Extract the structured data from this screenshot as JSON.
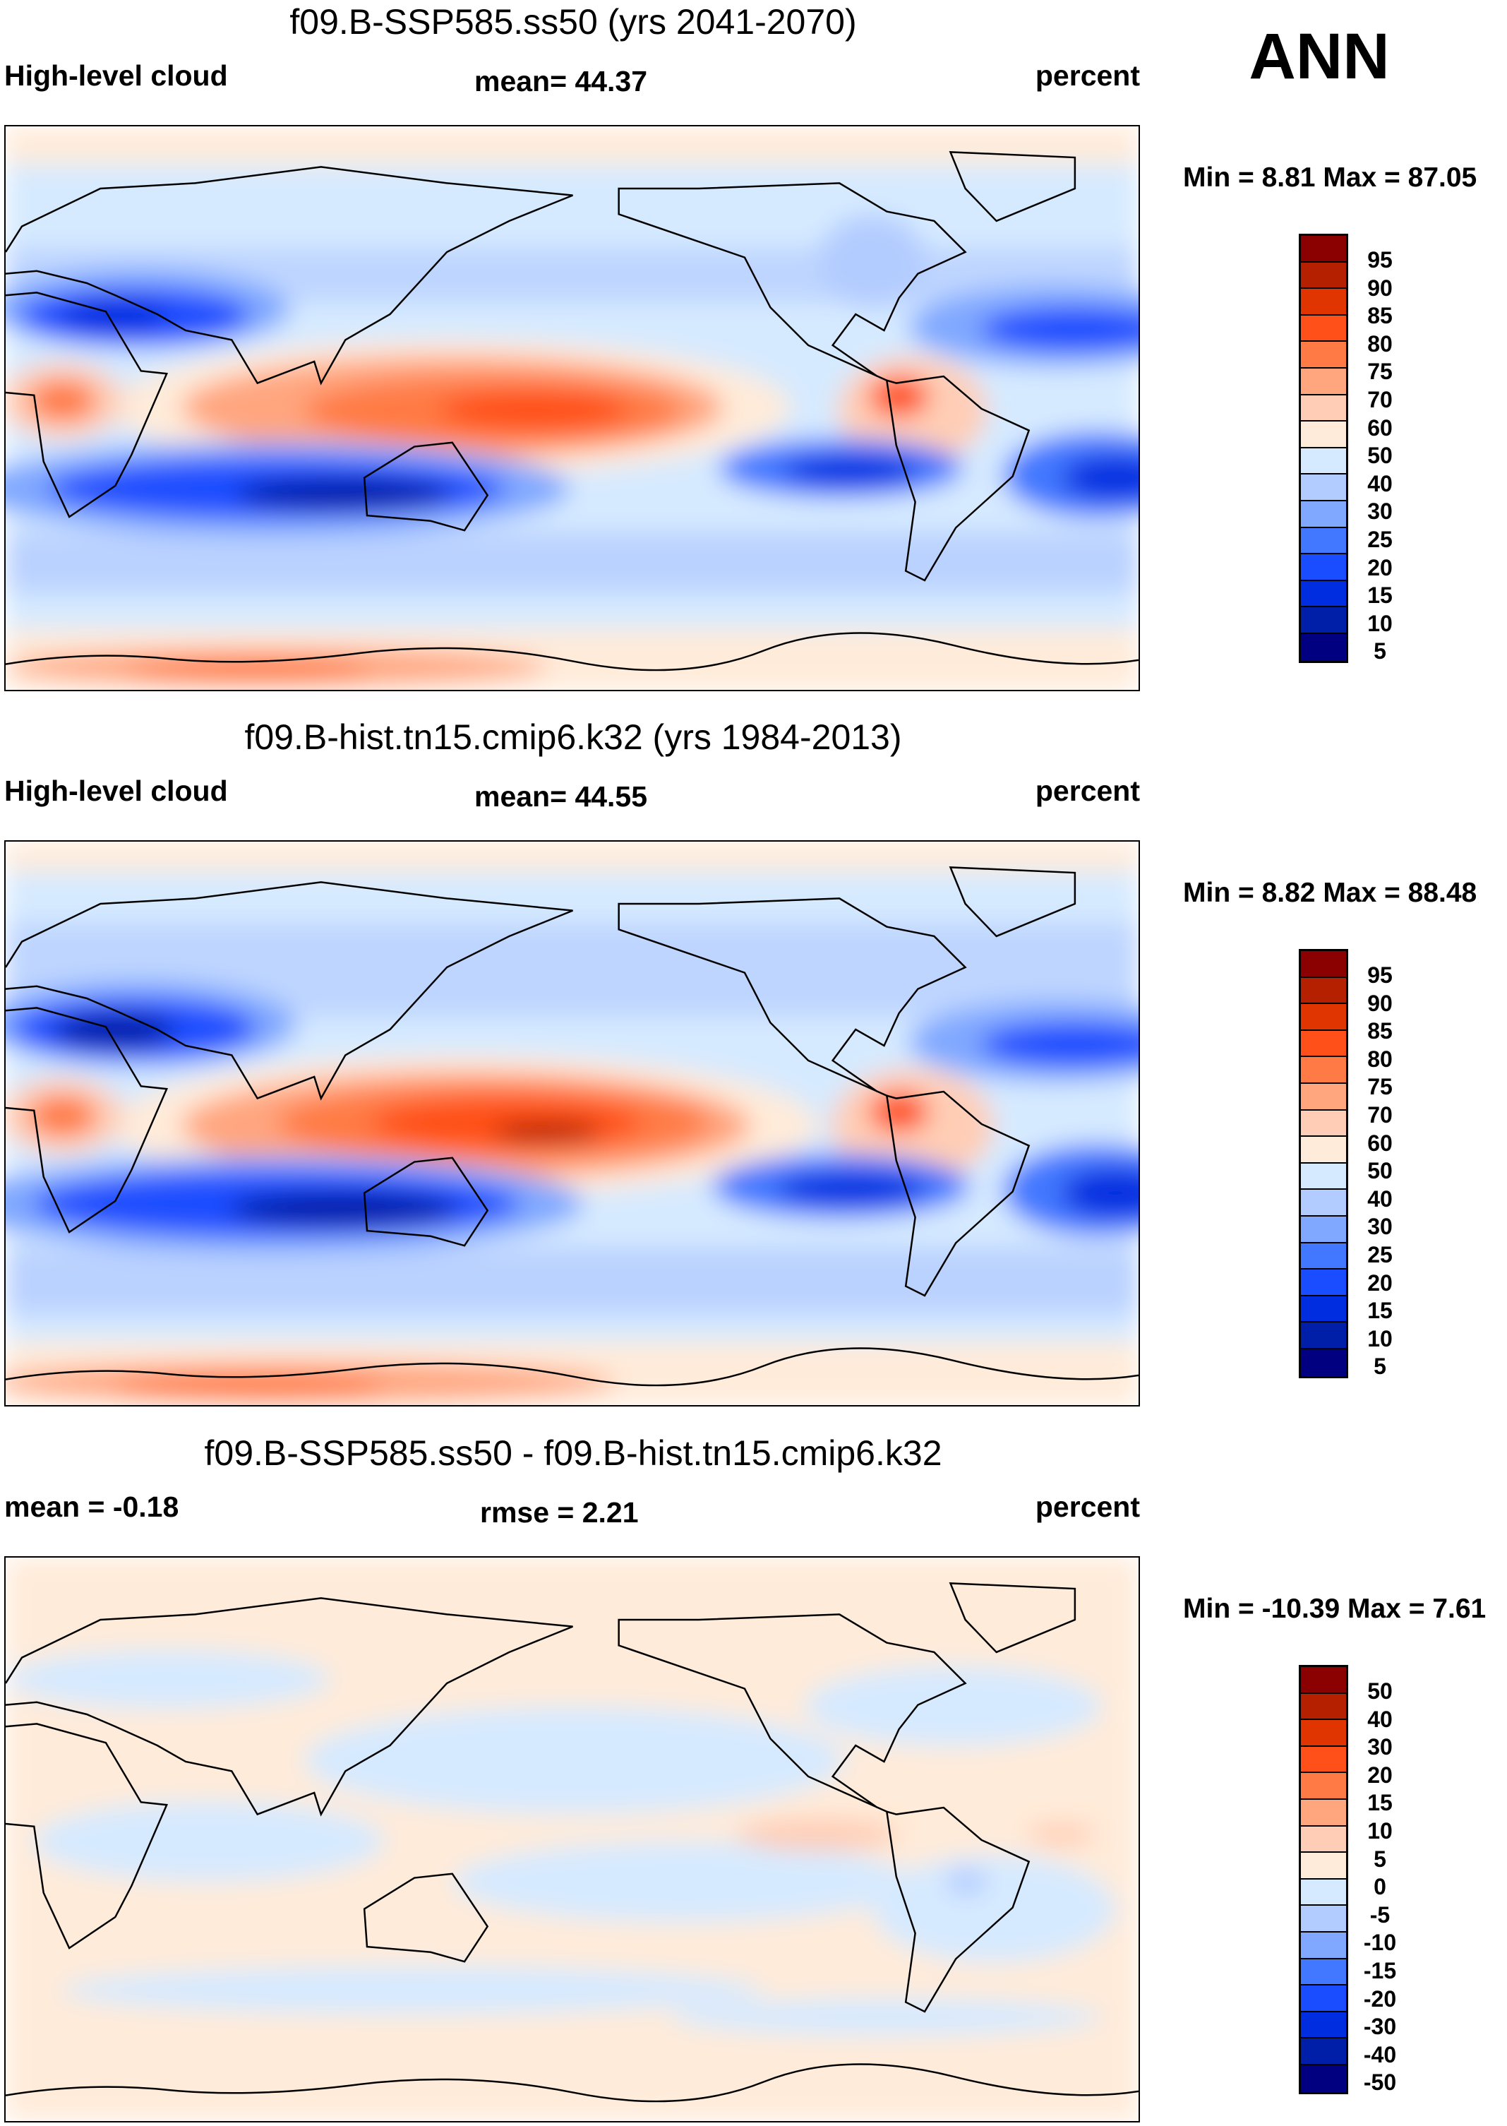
{
  "annotation": "ANN",
  "palette": [
    "#8b0000",
    "#b42000",
    "#e03500",
    "#ff5019",
    "#ff7a45",
    "#ffa67f",
    "#ffcdb5",
    "#ffebd9",
    "#d6eaff",
    "#b3ccff",
    "#80a8ff",
    "#4278ff",
    "#1a4dff",
    "#002de0",
    "#001fa8",
    "#000080"
  ],
  "panels": [
    {
      "title": "f09.B-SSP585.ss50 (yrs 2041-2070)",
      "left": "High-level cloud",
      "center": "mean=  44.37",
      "right": "percent",
      "minmax": "Min =   8.81 Max =  87.05",
      "levels": [
        "95",
        "90",
        "85",
        "80",
        "75",
        "70",
        "60",
        "50",
        "40",
        "30",
        "25",
        "20",
        "15",
        "10",
        "5"
      ]
    },
    {
      "title": "f09.B-hist.tn15.cmip6.k32 (yrs 1984-2013)",
      "left": "High-level cloud",
      "center": "mean=  44.55",
      "right": "percent",
      "minmax": "Min =   8.82 Max =  88.48",
      "levels": [
        "95",
        "90",
        "85",
        "80",
        "75",
        "70",
        "60",
        "50",
        "40",
        "30",
        "25",
        "20",
        "15",
        "10",
        "5"
      ]
    },
    {
      "title": "f09.B-SSP585.ss50 - f09.B-hist.tn15.cmip6.k32",
      "left": "mean =  -0.18",
      "center": "rmse =   2.21",
      "right": "percent",
      "minmax": "Min = -10.39 Max =   7.61",
      "levels": [
        "50",
        "40",
        "30",
        "20",
        "15",
        "10",
        "5",
        "0",
        "-5",
        "-10",
        "-15",
        "-20",
        "-30",
        "-40",
        "-50"
      ]
    }
  ],
  "chart_data": [
    {
      "type": "heatmap",
      "title": "f09.B-SSP585.ss50 (yrs 2041-2070)",
      "variable": "High-level cloud",
      "units": "percent",
      "mean": 44.37,
      "min": 8.81,
      "max": 87.05,
      "season": "ANN",
      "levels": [
        5,
        10,
        15,
        20,
        25,
        30,
        40,
        50,
        60,
        70,
        75,
        80,
        85,
        90,
        95
      ]
    },
    {
      "type": "heatmap",
      "title": "f09.B-hist.tn15.cmip6.k32 (yrs 1984-2013)",
      "variable": "High-level cloud",
      "units": "percent",
      "mean": 44.55,
      "min": 8.82,
      "max": 88.48,
      "season": "ANN",
      "levels": [
        5,
        10,
        15,
        20,
        25,
        30,
        40,
        50,
        60,
        70,
        75,
        80,
        85,
        90,
        95
      ]
    },
    {
      "type": "heatmap",
      "title": "f09.B-SSP585.ss50 - f09.B-hist.tn15.cmip6.k32",
      "units": "percent",
      "mean": -0.18,
      "rmse": 2.21,
      "min": -10.39,
      "max": 7.61,
      "levels": [
        -50,
        -40,
        -30,
        -20,
        -15,
        -10,
        -5,
        0,
        5,
        10,
        15,
        20,
        30,
        40,
        50
      ]
    }
  ]
}
